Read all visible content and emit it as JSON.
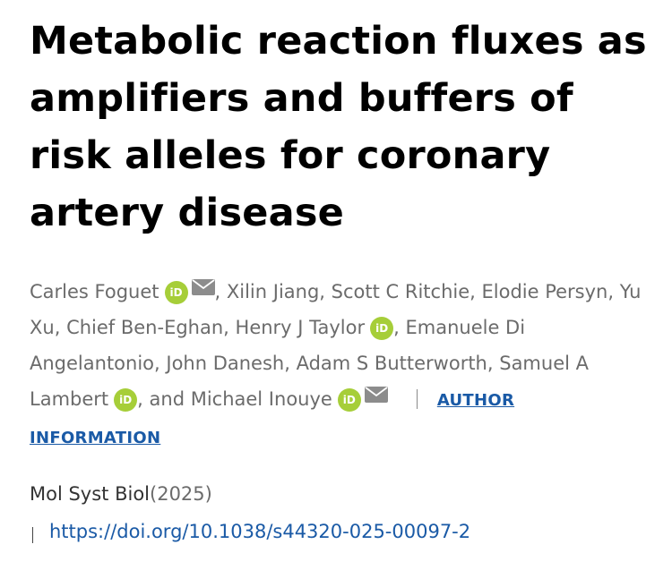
{
  "article": {
    "title": "Metabolic reaction fluxes as amplifiers and buffers of risk alleles for coronary artery disease"
  },
  "authors": [
    {
      "name": "Carles Foguet",
      "orcid": true,
      "email": true
    },
    {
      "name": "Xilin Jiang",
      "orcid": false,
      "email": false
    },
    {
      "name": "Scott C Ritchie",
      "orcid": false,
      "email": false
    },
    {
      "name": "Elodie Persyn",
      "orcid": false,
      "email": false
    },
    {
      "name": "Yu Xu",
      "orcid": false,
      "email": false
    },
    {
      "name": "Chief Ben-Eghan",
      "orcid": false,
      "email": false
    },
    {
      "name": "Henry J Taylor",
      "orcid": true,
      "email": false
    },
    {
      "name": "Emanuele Di Angelantonio",
      "orcid": false,
      "email": false
    },
    {
      "name": "John Danesh",
      "orcid": false,
      "email": false
    },
    {
      "name": "Adam S Butterworth",
      "orcid": false,
      "email": false
    },
    {
      "name": "Samuel A Lambert",
      "orcid": true,
      "email": false
    },
    {
      "name": "Michael Inouye",
      "orcid": true,
      "email": true
    }
  ],
  "author_separator": ", ",
  "author_final_separator": "and ",
  "orcid_badge_text": "iD",
  "orcid_color": "#a6ce39",
  "icons": {
    "orcid": "orcid-icon",
    "email": "envelope-icon"
  },
  "author_information_label": "AUTHOR INFORMATION",
  "journal": {
    "name": "Mol Syst Biol",
    "year": "(2025)"
  },
  "doi": {
    "url": "https://doi.org/10.1038/s44320-025-00097-2"
  },
  "colors": {
    "link": "#1a5aa6",
    "text_muted": "#6b6b6b"
  }
}
